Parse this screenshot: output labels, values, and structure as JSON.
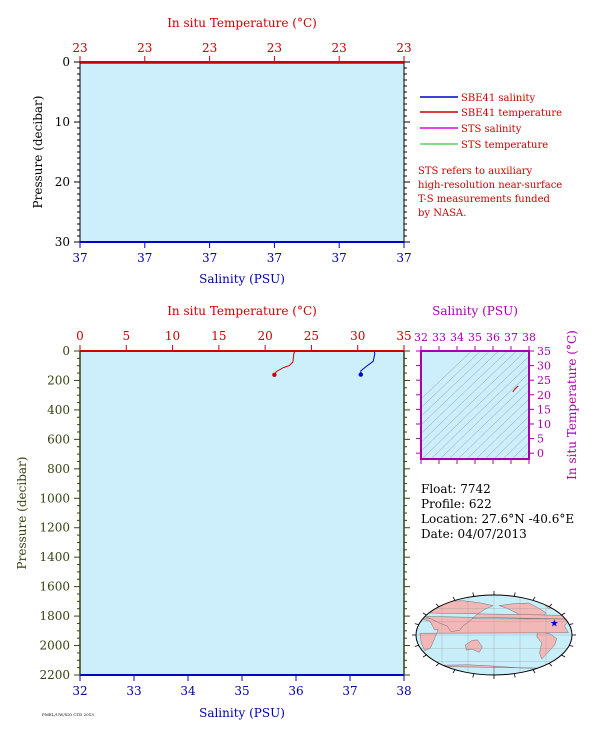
{
  "colors": {
    "plot_bg": "#cdeffb",
    "temperature": "#cc0000",
    "salinity": "#0000cc",
    "sts_salinity": "#dd00dd",
    "sts_temperature": "#66cc66",
    "sbe_temperature": "#ee8888",
    "pressure_axis": "#334411",
    "ts_axis": "#aa00aa",
    "land": "#f2b8b8",
    "ocean": "#c8eefa"
  },
  "chart_data": [
    {
      "id": "top",
      "type": "line",
      "title": "In situ Temperature (°C)",
      "xlabel": "Salinity (PSU)",
      "ylabel": "Pressure (decibar)",
      "top_ticks": [
        "23",
        "23",
        "23",
        "23",
        "23",
        "23"
      ],
      "bottom_ticks": [
        "37",
        "37",
        "37",
        "37",
        "37",
        "37"
      ],
      "y_ticks": [
        "0",
        "10",
        "20",
        "30"
      ],
      "ylim": [
        0,
        30
      ],
      "y_inverted": true,
      "legend": [
        "SBE41 salinity",
        "SBE41 temperature",
        "STS salinity",
        "STS temperature"
      ],
      "note": [
        "STS refers to auxiliary",
        "high-resolution near-surface",
        "T-S measurements funded",
        "by NASA."
      ]
    },
    {
      "id": "main",
      "type": "line",
      "title": "In situ Temperature (°C)",
      "xlabel": "Salinity (PSU)",
      "ylabel": "Pressure (decibar)",
      "xlim_temperature": [
        0,
        35
      ],
      "xlim_salinity": [
        32,
        38
      ],
      "ylim": [
        0,
        2200
      ],
      "y_inverted": true,
      "temperature_ticks": [
        "0",
        "5",
        "10",
        "15",
        "20",
        "25",
        "30",
        "35"
      ],
      "salinity_ticks": [
        "32",
        "33",
        "34",
        "35",
        "36",
        "37",
        "38"
      ],
      "pressure_ticks": [
        "0",
        "200",
        "400",
        "600",
        "800",
        "1000",
        "1200",
        "1400",
        "1600",
        "1800",
        "2000",
        "2200"
      ],
      "series": [
        {
          "name": "temperature",
          "points": [
            [
              23.2,
              0
            ],
            [
              23.1,
              20
            ],
            [
              23.0,
              75
            ],
            [
              22.6,
              100
            ],
            [
              22.0,
              112
            ],
            [
              21.2,
              140
            ],
            [
              21.0,
              162
            ]
          ]
        },
        {
          "name": "salinity",
          "points": [
            [
              37.45,
              0
            ],
            [
              37.46,
              20
            ],
            [
              37.43,
              70
            ],
            [
              37.3,
              105
            ],
            [
              37.2,
              135
            ],
            [
              37.2,
              160
            ]
          ]
        }
      ]
    },
    {
      "id": "ts",
      "type": "scatter",
      "title": "Salinity (PSU)",
      "ylabel": "In situ Temperature (°C)",
      "xlim": [
        32,
        38
      ],
      "ylim": [
        -2,
        35
      ],
      "x_ticks": [
        "32",
        "33",
        "34",
        "35",
        "36",
        "37",
        "38"
      ],
      "y_ticks": [
        "0",
        "5",
        "10",
        "15",
        "20",
        "25",
        "30",
        "35"
      ],
      "points": [
        [
          37.1,
          21.0
        ],
        [
          37.2,
          21.8
        ],
        [
          37.3,
          22.5
        ],
        [
          37.4,
          23.0
        ]
      ]
    }
  ],
  "info": {
    "float": "Float:  7742",
    "profile": "Profile:  622",
    "location": "Location:  27.6°N  -40.6°E",
    "date": "Date:  04/07/2013"
  },
  "map": {
    "marker_lat": 27.6,
    "marker_lon": -40.6
  },
  "footer_text": "PMEL/UW/SIO CTD 2013"
}
